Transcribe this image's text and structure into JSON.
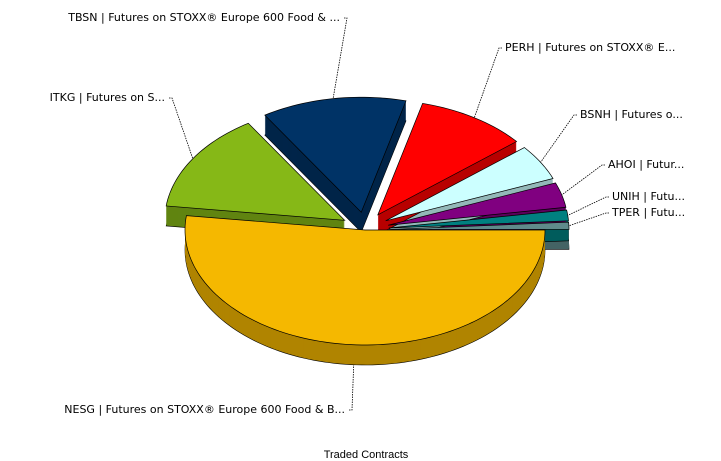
{
  "chart_data": {
    "type": "pie3d",
    "title": "Traded Contracts",
    "categories": [
      "TPER | Futu...",
      "UNIH | Futu...",
      "AHOI | Futur...",
      "BSNH | Futures o...",
      "PERH | Futures on STOXX® E...",
      "TBSN | Futures on STOXX® Europe 600 Food & ...",
      "ITKG | Futures on S...",
      "NESG | Futures on STOXX® Europe 600 Food & B..."
    ],
    "values": [
      1,
      1.5,
      3.5,
      5,
      10,
      13,
      14,
      52
    ],
    "colors": [
      "#5f8a8b",
      "#008080",
      "#800080",
      "#ccffff",
      "#ff0000",
      "#003366",
      "#86b817",
      "#f5b800"
    ]
  }
}
